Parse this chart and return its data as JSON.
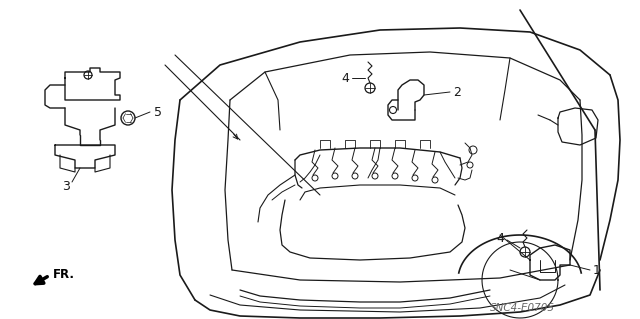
{
  "bg_color": "#ffffff",
  "line_color": "#1a1a1a",
  "diagram_code_id": "SNC4-E0705",
  "figsize": [
    6.4,
    3.19
  ],
  "dpi": 100,
  "label_fontsize": 8.5,
  "code_fontsize": 7.5
}
